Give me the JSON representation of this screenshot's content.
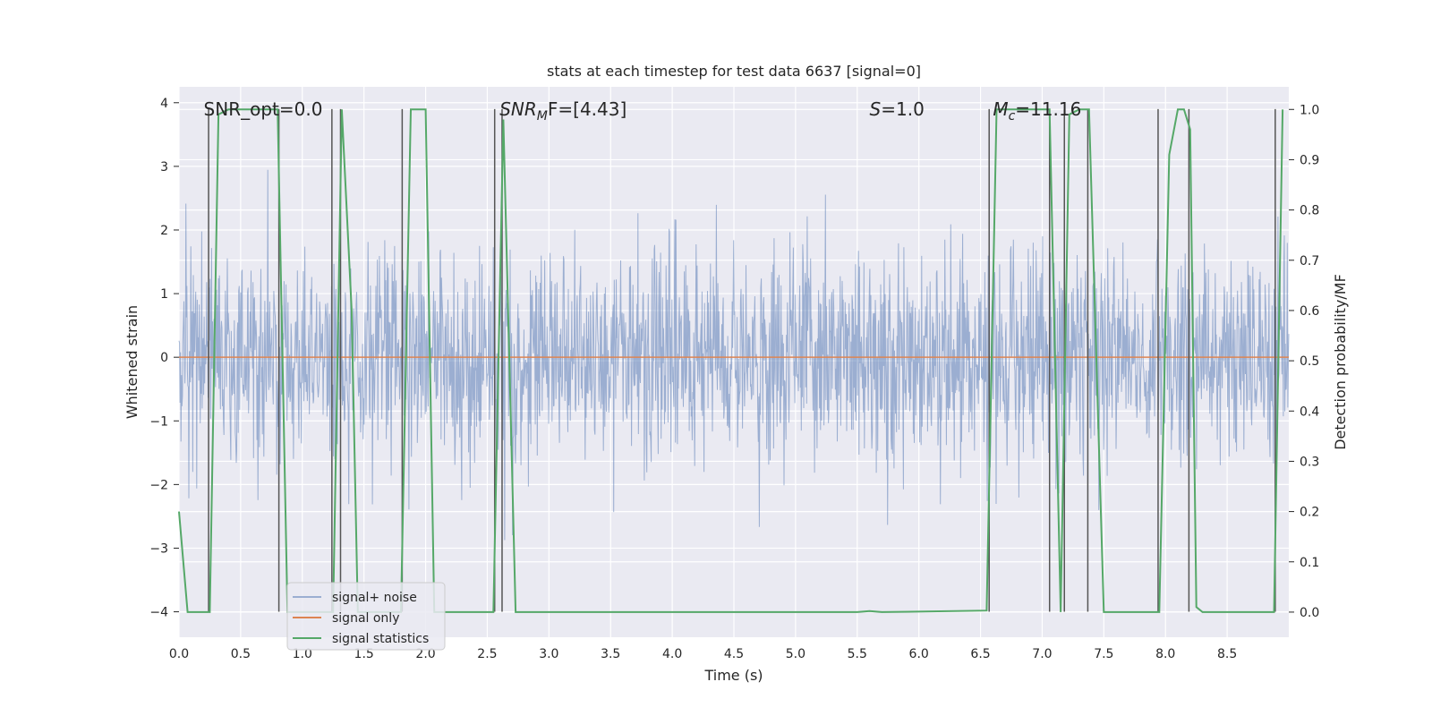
{
  "chart_data": {
    "type": "line",
    "title": "stats at each timestep for test data 6637 [signal=0]",
    "xlabel": "Time (s)",
    "ylabel": "Whitened strain",
    "y2label": "Detection probability/MF",
    "xlim": [
      0.0,
      9.0
    ],
    "ylim": [
      -4.4,
      4.25
    ],
    "y2lim": [
      -0.05,
      1.045
    ],
    "xticks": [
      0.0,
      0.5,
      1.0,
      1.5,
      2.0,
      2.5,
      3.0,
      3.5,
      4.0,
      4.5,
      5.0,
      5.5,
      6.0,
      6.5,
      7.0,
      7.5,
      8.0,
      8.5
    ],
    "xtick_labels": [
      "0.0",
      "0.5",
      "1.0",
      "1.5",
      "2.0",
      "2.5",
      "3.0",
      "3.5",
      "4.0",
      "4.5",
      "5.0",
      "5.5",
      "6.0",
      "6.5",
      "7.0",
      "7.5",
      "8.0",
      "8.5"
    ],
    "yticks": [
      -4,
      -3,
      -2,
      -1,
      0,
      1,
      2,
      3,
      4
    ],
    "ytick_labels": [
      "−4",
      "−3",
      "−2",
      "−1",
      "0",
      "1",
      "2",
      "3",
      "4"
    ],
    "y2ticks": [
      0.0,
      0.1,
      0.2,
      0.3,
      0.4,
      0.5,
      0.6,
      0.7,
      0.8,
      0.9,
      1.0
    ],
    "y2tick_labels": [
      "0.0",
      "0.1",
      "0.2",
      "0.3",
      "0.4",
      "0.5",
      "0.6",
      "0.7",
      "0.8",
      "0.9",
      "1.0"
    ],
    "grid": true,
    "legend_position": "lower-left",
    "annotations": {
      "snr_opt": {
        "label": "SNR_opt=0.0",
        "x": 0.2
      },
      "snr_mf_name": "SNR",
      "snr_mf_sub": "M",
      "snr_mf_tail": "F=[4.43]",
      "snr_mf_x": 2.6,
      "s_name": "S",
      "s_tail": "=1.0",
      "s_x": 5.6,
      "mc_name": "M",
      "mc_sub": "c",
      "mc_tail": "=11.16",
      "mc_x": 6.6,
      "annot_y": 3.8
    },
    "series": [
      {
        "name": "signal+ noise",
        "color": "#4c72b0",
        "opacity": 0.5,
        "axis": "left",
        "noise_sigma": 0.85,
        "n_samples": 2250
      },
      {
        "name": "signal only",
        "color": "#dd8452",
        "axis": "left",
        "x": [
          0.0,
          9.0
        ],
        "y": [
          0.0,
          0.0
        ]
      },
      {
        "name": "signal statistics",
        "color": "#55a868",
        "axis": "right",
        "x": [
          0.0,
          0.07,
          0.25,
          0.32,
          0.4,
          0.6,
          0.8,
          0.88,
          1.25,
          1.32,
          1.4,
          1.45,
          1.8,
          1.88,
          2.0,
          2.07,
          2.55,
          2.63,
          2.73,
          5.5,
          5.6,
          5.7,
          6.55,
          6.63,
          6.7,
          7.06,
          7.15,
          7.22,
          7.3,
          7.38,
          7.5,
          7.95,
          8.03,
          8.1,
          8.15,
          8.2,
          8.25,
          8.3,
          8.35,
          8.88,
          8.95
        ],
        "y": [
          0.2,
          0.0,
          0.0,
          0.99,
          1.0,
          1.0,
          1.0,
          0.0,
          0.0,
          1.0,
          0.6,
          0.0,
          0.0,
          1.0,
          1.0,
          0.0,
          0.0,
          0.98,
          0.0,
          0.0,
          0.002,
          0.0,
          0.003,
          1.0,
          1.0,
          1.0,
          0.0,
          0.99,
          1.0,
          1.0,
          0.0,
          0.0,
          0.91,
          1.0,
          1.0,
          0.96,
          0.01,
          0.0,
          0.0,
          0.0,
          1.0
        ]
      }
    ],
    "vertical_lines": {
      "color": "#555555",
      "x": [
        0.24,
        0.81,
        1.24,
        1.31,
        1.81,
        2.56,
        2.62,
        6.57,
        7.06,
        7.18,
        7.37,
        7.94,
        8.19,
        8.89
      ]
    }
  },
  "colors": {
    "plot_background": "#eaeaf2",
    "grid": "#ffffff",
    "legend_background": "#eaeaf2",
    "legend_border": "#cccccc"
  }
}
